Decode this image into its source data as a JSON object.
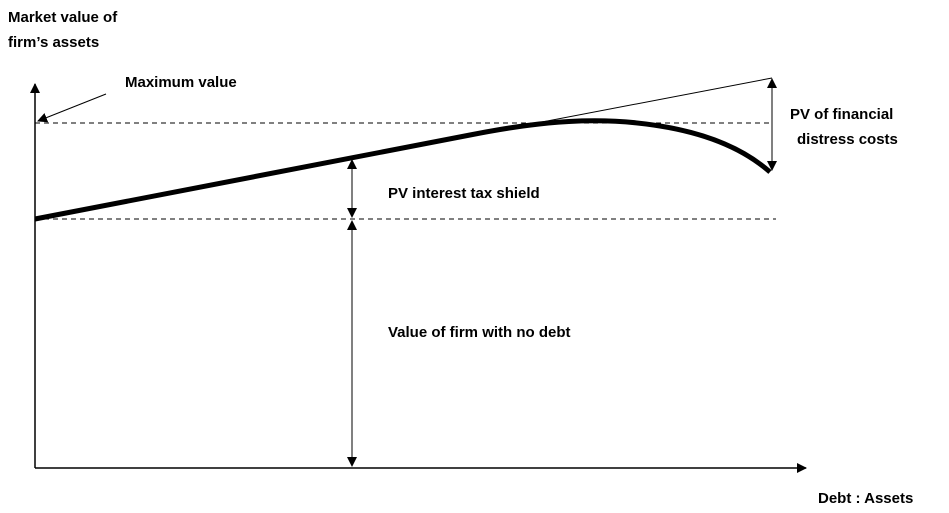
{
  "diagram": {
    "y_axis_label": [
      "Market value of",
      "firm’s assets"
    ],
    "x_axis_label": "Debt : Assets",
    "annotations": {
      "maximum_value": "Maximum value",
      "distress_costs": [
        "PV of financial",
        "distress costs"
      ],
      "tax_shield": "PV interest tax shield",
      "no_debt": "Value of firm with no debt"
    }
  }
}
